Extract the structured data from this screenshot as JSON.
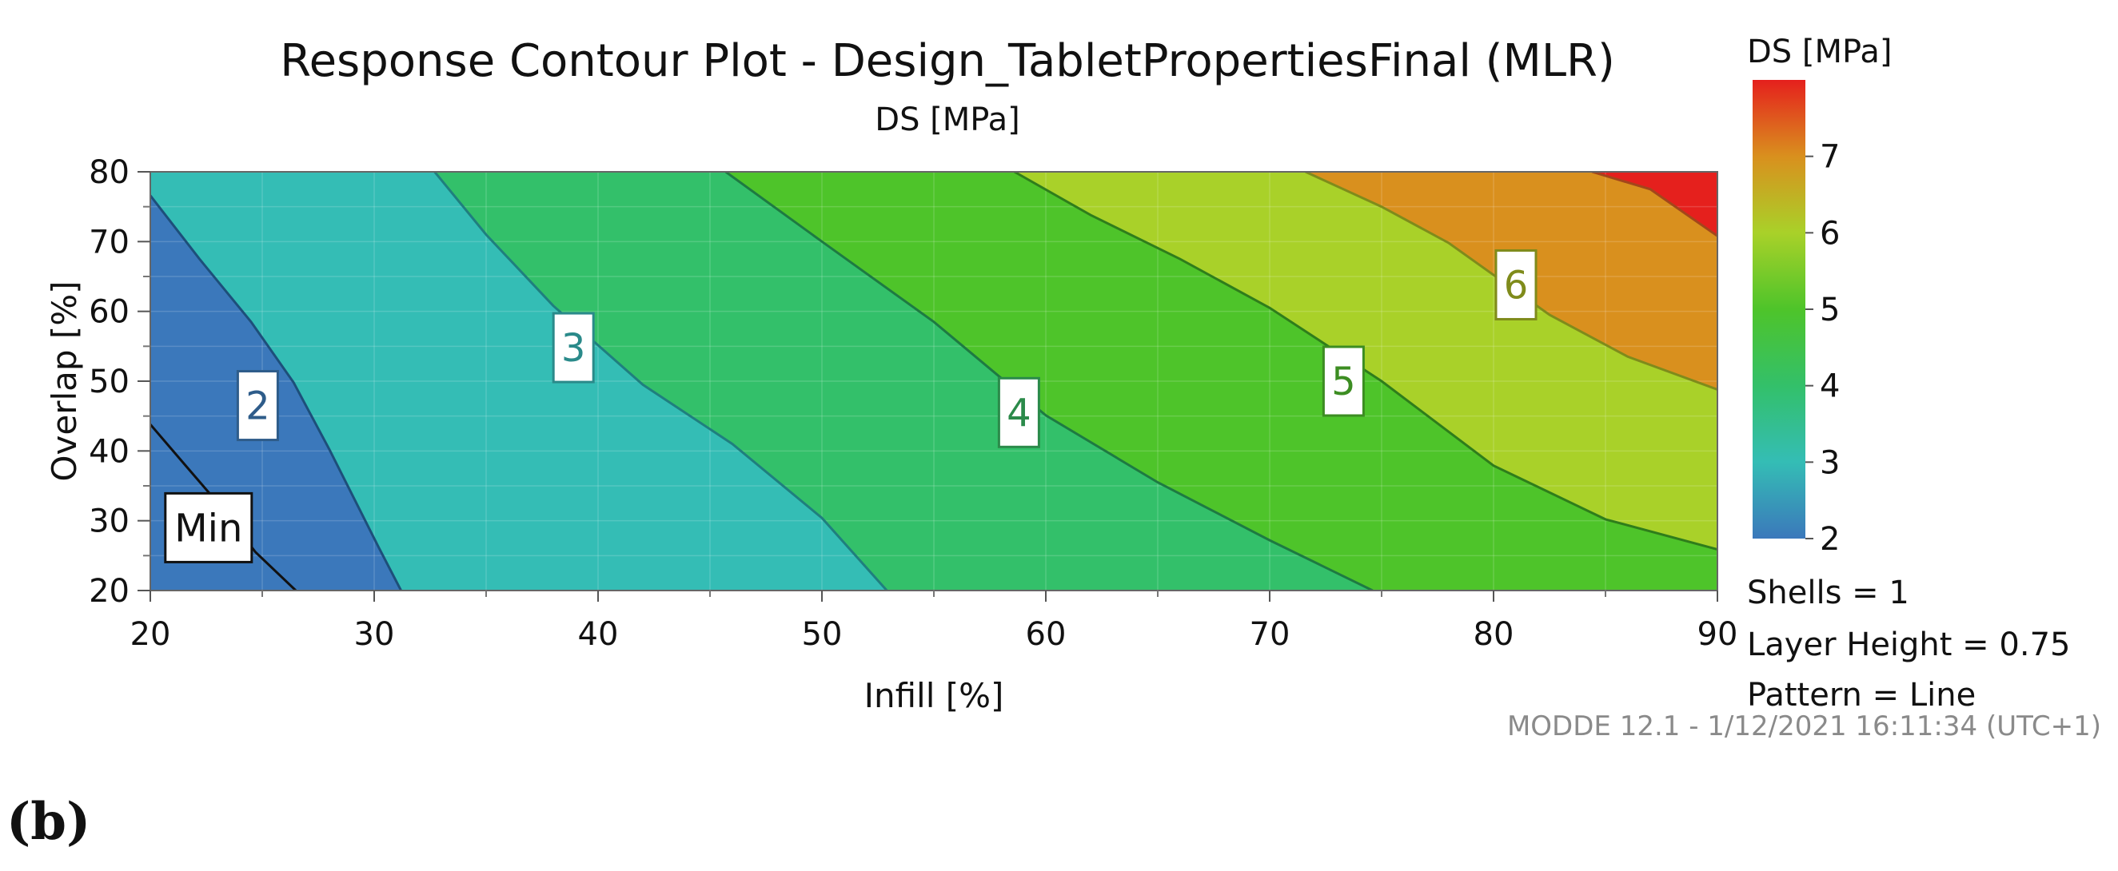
{
  "chart_data": {
    "type": "contour",
    "title": "Response Contour Plot - Design_TabletPropertiesFinal (MLR)",
    "subtitle": "DS [MPa]",
    "xlabel": "Infill [%]",
    "ylabel": "Overlap [%]",
    "xlim": [
      20,
      90
    ],
    "ylim": [
      20,
      80
    ],
    "x_ticks": [
      "20",
      "30",
      "40",
      "50",
      "60",
      "70",
      "80",
      "90"
    ],
    "y_ticks": [
      "20",
      "30",
      "40",
      "50",
      "60",
      "70",
      "80"
    ],
    "response": "DS [MPa]",
    "contour_levels": [
      2,
      3,
      4,
      5,
      6,
      7
    ],
    "contour_lines": [
      {
        "level": 1.5,
        "label": "Min",
        "points": [
          [
            20,
            43.8
          ],
          [
            21.5,
            38.2
          ],
          [
            23,
            32.6
          ],
          [
            24.7,
            25.5
          ],
          [
            26.5,
            20
          ]
        ]
      },
      {
        "level": 2,
        "label": "2",
        "points": [
          [
            20,
            76.6
          ],
          [
            22.2,
            67.5
          ],
          [
            24.5,
            58.5
          ],
          [
            26.4,
            49.8
          ],
          [
            28.0,
            40.2
          ],
          [
            30.2,
            26.2
          ],
          [
            31.2,
            20
          ]
        ]
      },
      {
        "level": 3,
        "label": "3",
        "points": [
          [
            32.7,
            80
          ],
          [
            35,
            71
          ],
          [
            38,
            60.8
          ],
          [
            42,
            49.5
          ],
          [
            46,
            41
          ],
          [
            50,
            30.4
          ],
          [
            52.9,
            20
          ]
        ]
      },
      {
        "level": 4,
        "label": "4",
        "points": [
          [
            45.7,
            80
          ],
          [
            50,
            70
          ],
          [
            55,
            58.5
          ],
          [
            60,
            45.1
          ],
          [
            65,
            35.5
          ],
          [
            70,
            27.2
          ],
          [
            74.6,
            20
          ]
        ]
      },
      {
        "level": 5,
        "label": "5",
        "points": [
          [
            58.6,
            80
          ],
          [
            62,
            73.8
          ],
          [
            66,
            67.5
          ],
          [
            70,
            60.5
          ],
          [
            75,
            50
          ],
          [
            80,
            37.9
          ],
          [
            85,
            30.2
          ],
          [
            90,
            25.9
          ]
        ]
      },
      {
        "level": 6,
        "label": "6",
        "points": [
          [
            71.6,
            80
          ],
          [
            75,
            75
          ],
          [
            78,
            69.8
          ],
          [
            82.5,
            59.5
          ],
          [
            86,
            53.5
          ],
          [
            90,
            48.8
          ]
        ]
      },
      {
        "level": 7,
        "label": "",
        "points": [
          [
            84.4,
            80
          ],
          [
            87,
            77.5
          ],
          [
            90,
            70.8
          ]
        ]
      }
    ],
    "contour_label_positions": [
      {
        "label": "Min",
        "x": 22.6,
        "y": 29.0
      },
      {
        "label": "2",
        "x": 24.8,
        "y": 46.5
      },
      {
        "label": "3",
        "x": 38.9,
        "y": 54.8
      },
      {
        "label": "4",
        "x": 58.8,
        "y": 45.5
      },
      {
        "label": "5",
        "x": 73.3,
        "y": 50.0
      },
      {
        "label": "6",
        "x": 81.0,
        "y": 63.8
      }
    ],
    "fill_colors": [
      "#3b78bb",
      "#34bdb5",
      "#33c06a",
      "#4ec42a",
      "#a9d129",
      "#d9901e",
      "#e5201d"
    ],
    "colorbar": {
      "title": "DS [MPa]",
      "range": [
        2,
        8
      ],
      "ticks": [
        "2",
        "3",
        "4",
        "5",
        "6",
        "7"
      ],
      "stops": [
        "#3b78bb",
        "#34bdb5",
        "#33c06a",
        "#4ec42a",
        "#a9d129",
        "#d9901e",
        "#e5201d"
      ]
    },
    "conditions": [
      "Shells = 1",
      "Layer Height = 0.75",
      "Pattern = Line"
    ],
    "grid": true
  },
  "stamp": "MODDE 12.1 - 1/12/2021 16:11:34 (UTC+1)",
  "panel_label": "(b)"
}
